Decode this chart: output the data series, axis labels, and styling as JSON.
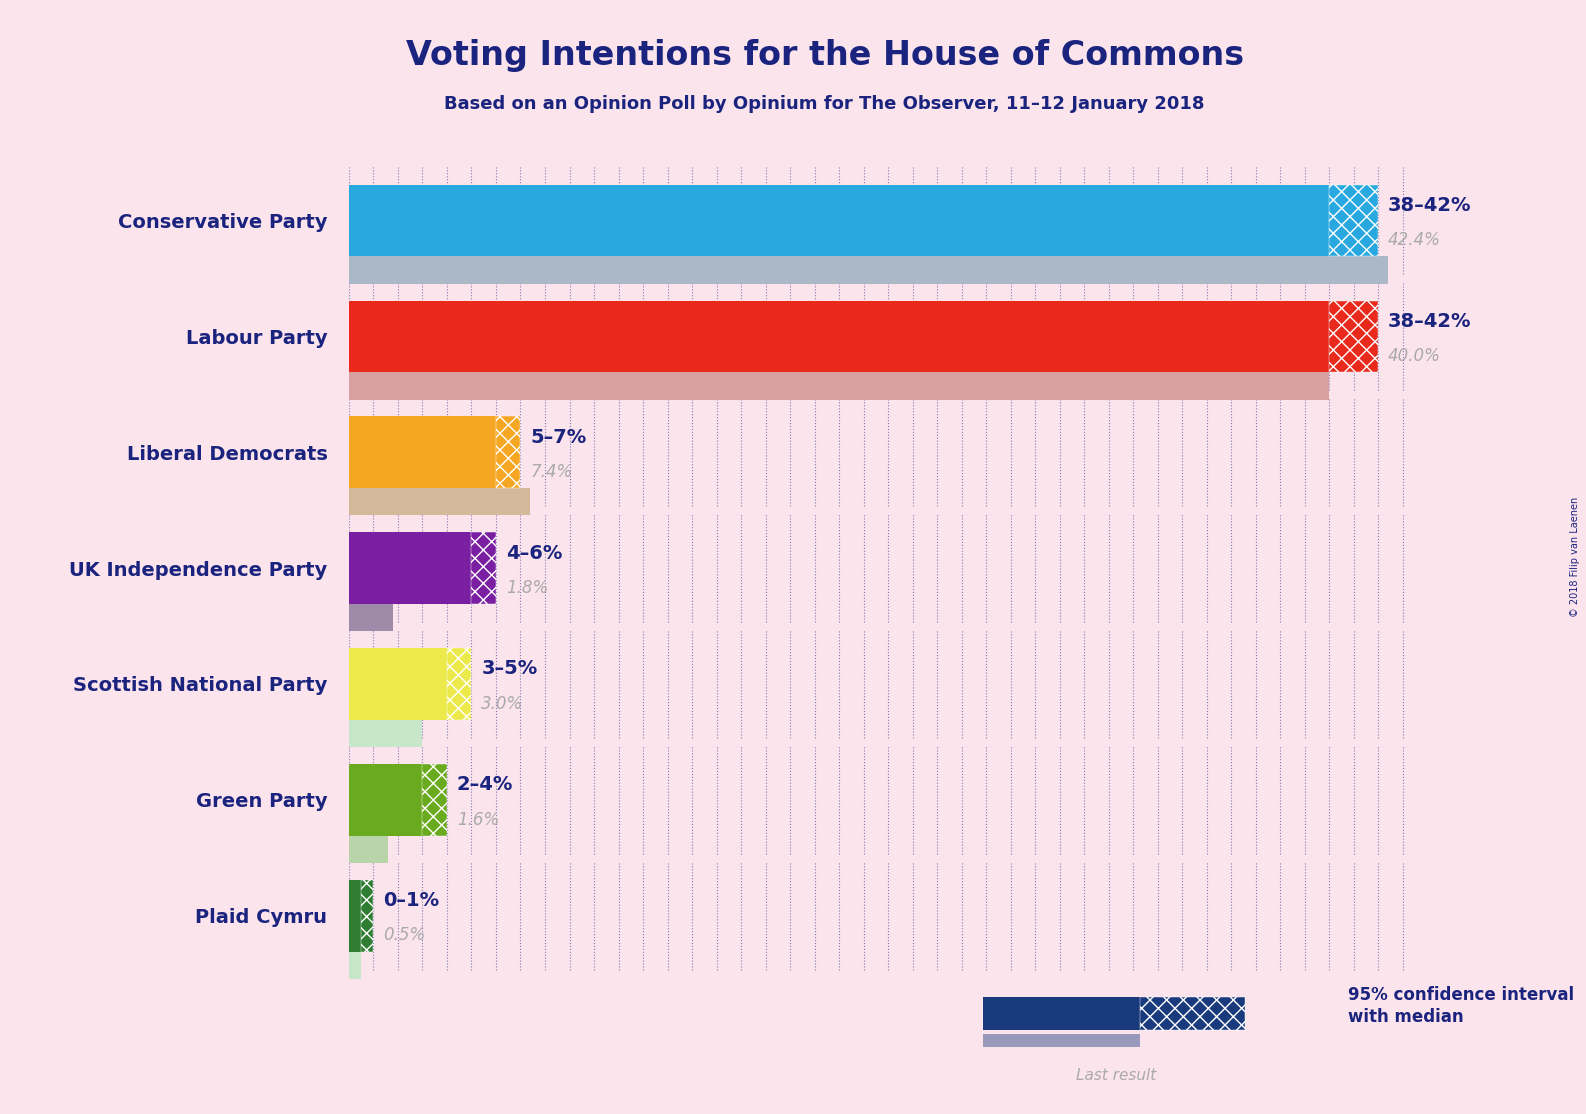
{
  "title": "Voting Intentions for the House of Commons",
  "subtitle": "Based on an Opinion Poll by Opinium for The Observer, 11–12 January 2018",
  "copyright": "© 2018 Filip van Laenen",
  "background_color": "#fce4ec",
  "title_color": "#1a237e",
  "subtitle_color": "#1a237e",
  "parties": [
    {
      "name": "Conservative Party",
      "median": 40.0,
      "ci_low": 38,
      "ci_high": 42,
      "last_result": 42.4,
      "color": "#29a8e0",
      "hatch_color": "#29a8e0",
      "last_color": "#aab8c8",
      "label": "38–42%",
      "sublabel": "42.4%"
    },
    {
      "name": "Labour Party",
      "median": 40.0,
      "ci_low": 38,
      "ci_high": 42,
      "last_result": 40.0,
      "color": "#e8291c",
      "hatch_color": "#e8291c",
      "last_color": "#d9a0a0",
      "label": "38–42%",
      "sublabel": "40.0%"
    },
    {
      "name": "Liberal Democrats",
      "median": 6.0,
      "ci_low": 5,
      "ci_high": 7,
      "last_result": 7.4,
      "color": "#f5a623",
      "hatch_color": "#f5a623",
      "last_color": "#d4b89a",
      "label": "5–7%",
      "sublabel": "7.4%"
    },
    {
      "name": "UK Independence Party",
      "median": 5.0,
      "ci_low": 4,
      "ci_high": 6,
      "last_result": 1.8,
      "color": "#7b1fa2",
      "hatch_color": "#7b1fa2",
      "last_color": "#a08aaa",
      "label": "4–6%",
      "sublabel": "1.8%"
    },
    {
      "name": "Scottish National Party",
      "median": 4.0,
      "ci_low": 3,
      "ci_high": 5,
      "last_result": 3.0,
      "color": "#ece94a",
      "hatch_color": "#ece94a",
      "last_color": "#c8e6c9",
      "label": "3–5%",
      "sublabel": "3.0%"
    },
    {
      "name": "Green Party",
      "median": 3.0,
      "ci_low": 2,
      "ci_high": 4,
      "last_result": 1.6,
      "color": "#6aaa1e",
      "hatch_color": "#6aaa1e",
      "last_color": "#b8d4a8",
      "label": "2–4%",
      "sublabel": "1.6%"
    },
    {
      "name": "Plaid Cymru",
      "median": 0.5,
      "ci_low": 0,
      "ci_high": 1,
      "last_result": 0.5,
      "color": "#2e7d32",
      "hatch_color": "#2e7d32",
      "last_color": "#c8e6c9",
      "label": "0–1%",
      "sublabel": "0.5%"
    }
  ],
  "x_max": 44,
  "bar_height": 0.62,
  "label_color": "#1a237e",
  "sublabel_color": "#aaaaaa",
  "dot_color": "#1a237e",
  "legend_bar_color": "#1a3a7e",
  "legend_last_color": "#9999bb"
}
